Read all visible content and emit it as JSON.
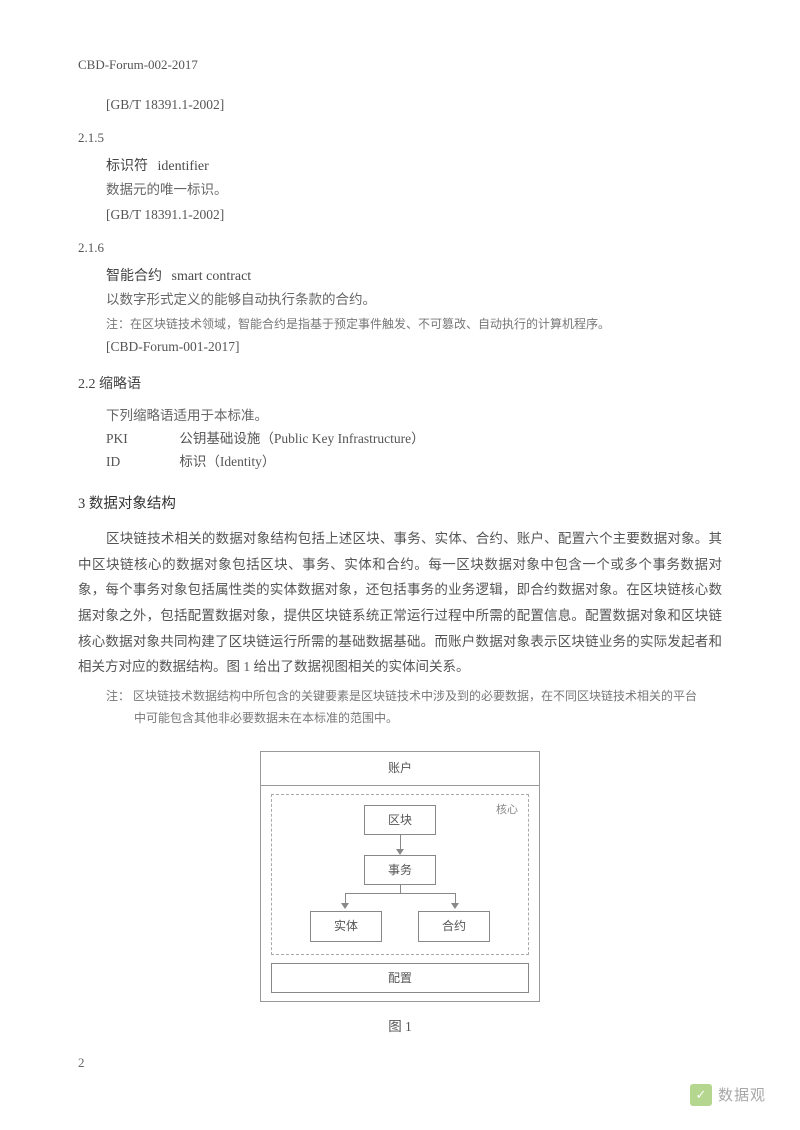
{
  "header": {
    "doc_id": "CBD-Forum-002-2017"
  },
  "s214_ref": "[GB/T 18391.1-2002]",
  "s215": {
    "num": "2.1.5",
    "term_cn": "标识符",
    "term_en": "identifier",
    "def": "数据元的唯一标识。",
    "ref": "[GB/T 18391.1-2002]"
  },
  "s216": {
    "num": "2.1.6",
    "term_cn": "智能合约",
    "term_en": "smart contract",
    "def": "以数字形式定义的能够自动执行条款的合约。",
    "note": "注：在区块链技术领域，智能合约是指基于预定事件触发、不可篡改、自动执行的计算机程序。",
    "ref": "[CBD-Forum-001-2017]"
  },
  "s22": {
    "title": "2.2 缩略语",
    "intro": "下列缩略语适用于本标准。",
    "rows": [
      {
        "k": "PKI",
        "v": "公钥基础设施（Public Key Infrastructure）"
      },
      {
        "k": "ID",
        "v": "标识（Identity）"
      }
    ]
  },
  "s3": {
    "title": "3 数据对象结构",
    "para": "区块链技术相关的数据对象结构包括上述区块、事务、实体、合约、账户、配置六个主要数据对象。其中区块链核心的数据对象包括区块、事务、实体和合约。每一区块数据对象中包含一个或多个事务数据对象，每个事务对象包括属性类的实体数据对象，还包括事务的业务逻辑，即合约数据对象。在区块链核心数据对象之外，包括配置数据对象，提供区块链系统正常运行过程中所需的配置信息。配置数据对象和区块链核心数据对象共同构建了区块链运行所需的基础数据基础。而账户数据对象表示区块链业务的实际发起者和相关方对应的数据结构。图 1 给出了数据视图相关的实体间关系。",
    "note_label": "注：",
    "note_l1": "区块链技术数据结构中所包含的关键要素是区块链技术中涉及到的必要数据，在不同区块链技术相关的平台",
    "note_l2": "中可能包含其他非必要数据未在本标准的范围中。"
  },
  "diagram": {
    "account": "账户",
    "core_label": "核心",
    "block": "区块",
    "tx": "事务",
    "entity": "实体",
    "contract": "合约",
    "config": "配置",
    "caption": "图 1"
  },
  "page_num": "2",
  "watermark": {
    "icon": "✓",
    "text": "数据观"
  }
}
